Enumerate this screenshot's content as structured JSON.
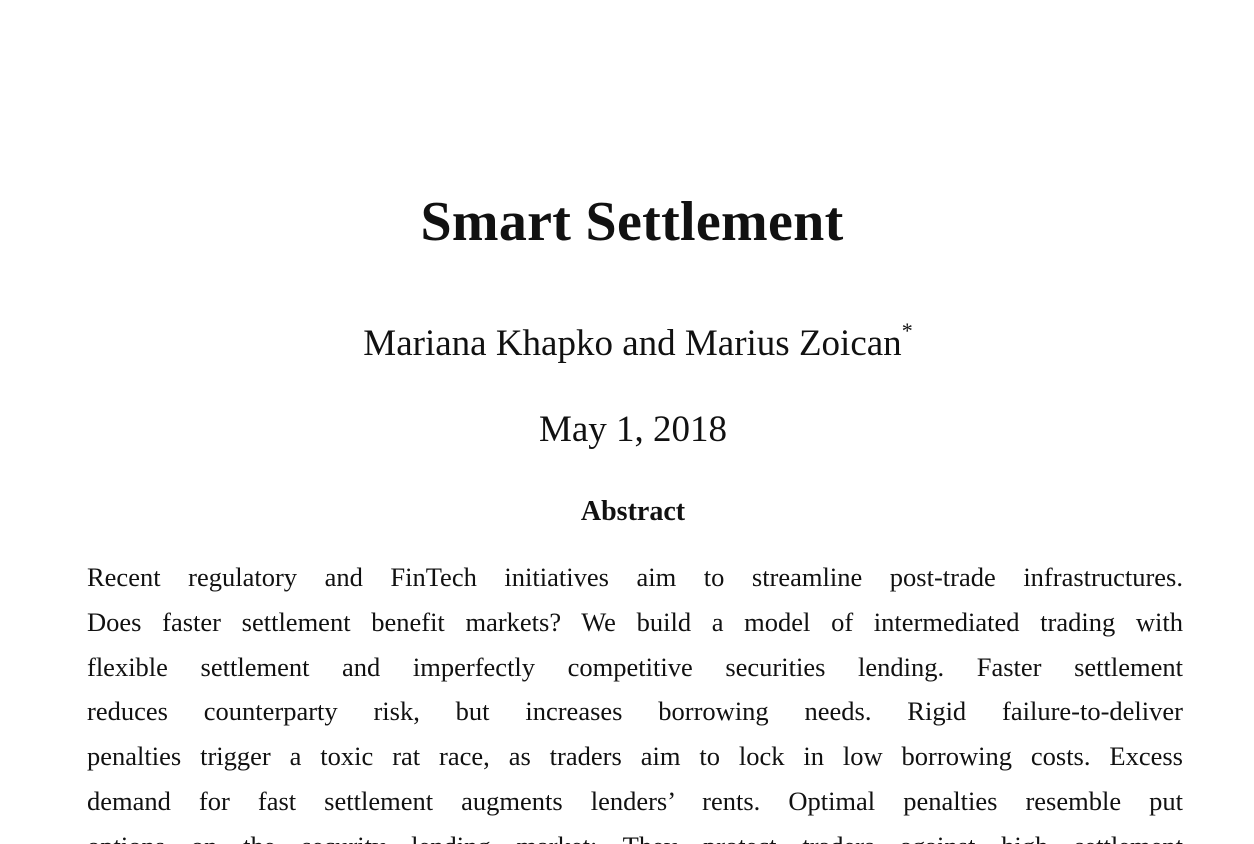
{
  "paper": {
    "title": "Smart Settlement",
    "authors": "Mariana Khapko and Marius Zoican",
    "author_footnote_mark": "*",
    "date": "May 1, 2018",
    "abstract_heading": "Abstract",
    "abstract_lines": [
      "Recent regulatory and FinTech initiatives aim to streamline post-trade infrastructures.",
      "Does faster settlement benefit markets? We build a model of intermediated trading with",
      "flexible settlement and imperfectly competitive securities lending. Faster settlement",
      "reduces counterparty risk, but increases borrowing needs. Rigid failure-to-deliver",
      "penalties trigger a toxic rat race, as traders aim to lock in low borrowing costs. Excess",
      "demand for fast settlement augments lenders’ rents. Optimal penalties resemble put",
      "options on the security lending market: They protect traders against high settlement"
    ]
  }
}
